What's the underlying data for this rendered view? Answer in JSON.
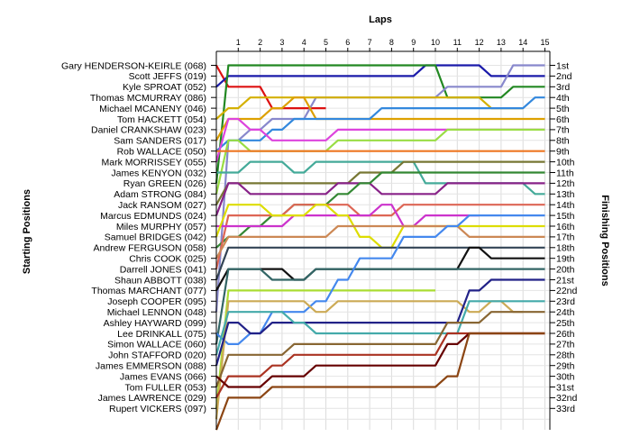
{
  "chart_data": {
    "type": "line",
    "xlabel": "Laps",
    "ylabel_left": "Starting Positions",
    "ylabel_right": "Finishing Positions",
    "x_ticks": [
      "1",
      "2",
      "3",
      "4",
      "5",
      "6",
      "7",
      "8",
      "9",
      "10",
      "11",
      "12",
      "13",
      "14",
      "15"
    ],
    "finishing_labels": [
      "1st",
      "2nd",
      "3rd",
      "4th",
      "5th",
      "6th",
      "7th",
      "8th",
      "9th",
      "10th",
      "11th",
      "12th",
      "13th",
      "14th",
      "15th",
      "16th",
      "17th",
      "18th",
      "19th",
      "20th",
      "21st",
      "22nd",
      "23rd",
      "24th",
      "25th",
      "26th",
      "27th",
      "28th",
      "29th",
      "30th",
      "31st",
      "32nd",
      "33rd"
    ],
    "starting_labels": [
      "Gary HENDERSON-KEIRLE (068)",
      "Scott JEFFS (019)",
      "Kyle SPROAT (052)",
      "Thomas MCMURRAY (086)",
      "Michael MCANENY (046)",
      "Tom HACKETT (054)",
      "Daniel CRANKSHAW (023)",
      "Sam SANDERS (017)",
      "Rob WALLACE (050)",
      "Mark MORRISSEY (055)",
      "James KENYON (032)",
      "Ryan GREEN (026)",
      "Adam STRONG (084)",
      "Jack RANSOM (027)",
      "Marcus EDMUNDS (024)",
      "Miles MURPHY (057)",
      "Samuel BRIDGES (042)",
      "Andrew FERGUSON (058)",
      "Chris COOK (025)",
      "Darrell JONES (041)",
      "Shaun ABBOTT (038)",
      "Thomas MARCHANT (077)",
      "Joseph COOPER (095)",
      "Michael LENNON (048)",
      "Ashley HAYWARD (099)",
      "Lee DRINKALL (075)",
      "Simon WALLACE (060)",
      "John STAFFORD (020)",
      "James EMMERSON (088)",
      "James EVANS (066)",
      "Tom FULLER (053)",
      "James LAWRENCE (029)",
      "Rupert VICKERS (097)"
    ],
    "series": [
      {
        "color": "#dd1111",
        "values": [
          1,
          3,
          3,
          5,
          5,
          5
        ]
      },
      {
        "color": "#1a1aaa",
        "values": [
          3,
          2,
          2,
          2,
          2,
          2,
          2,
          2,
          2,
          2,
          1,
          1,
          1,
          2,
          2,
          2
        ]
      },
      {
        "color": "#228822",
        "values": [
          12,
          1,
          1,
          1,
          1,
          1,
          1,
          1,
          1,
          1,
          1,
          4,
          4,
          4,
          3,
          3
        ]
      },
      {
        "color": "#8888cc",
        "values": [
          24,
          8,
          7,
          6,
          6,
          4,
          4,
          4,
          4,
          4,
          4,
          3,
          3,
          3,
          1,
          1
        ]
      },
      {
        "color": "#d4b000",
        "values": [
          6,
          5,
          4,
          4,
          4,
          4,
          4,
          4,
          4,
          4,
          4,
          4,
          4,
          5,
          5
        ]
      },
      {
        "color": "#dda000",
        "values": [
          8,
          6,
          6,
          5,
          4,
          6,
          6,
          6,
          6,
          6,
          6,
          6,
          6,
          6,
          6,
          6
        ]
      },
      {
        "color": "#3388dd",
        "values": [
          9,
          8,
          8,
          7,
          6,
          6,
          6,
          6,
          5,
          5,
          5,
          5,
          5,
          5,
          5,
          4
        ]
      },
      {
        "color": "#dd44dd",
        "values": [
          10,
          6,
          7,
          8,
          8,
          8,
          7,
          7,
          7,
          7,
          7,
          7,
          7,
          7,
          7,
          7
        ]
      },
      {
        "color": "#99dd44",
        "values": [
          13,
          8,
          9,
          9,
          9,
          9,
          8,
          8,
          8,
          8,
          8,
          7,
          7,
          7,
          7,
          7
        ]
      },
      {
        "color": "#ee7722",
        "values": [
          9,
          9,
          9,
          9,
          9,
          9,
          9,
          9,
          9,
          9,
          9,
          9,
          9,
          9,
          9,
          9
        ]
      },
      {
        "color": "#44aa99",
        "values": [
          11,
          11,
          10,
          10,
          11,
          10,
          10,
          10,
          10,
          10,
          12,
          12,
          12,
          12,
          12,
          13
        ]
      },
      {
        "color": "#777733",
        "values": [
          14,
          12,
          12,
          12,
          12,
          12,
          12,
          11,
          11,
          10,
          10,
          10,
          10,
          10,
          10,
          10
        ]
      },
      {
        "color": "#882288",
        "values": [
          15,
          12,
          13,
          13,
          13,
          13,
          12,
          12,
          13,
          13,
          13,
          12,
          12,
          12,
          12,
          12
        ]
      },
      {
        "color": "#338833",
        "values": [
          18,
          17,
          16,
          15,
          14,
          14,
          13,
          12,
          11,
          11,
          11,
          11,
          11,
          11,
          11,
          11
        ]
      },
      {
        "color": "#dd6655",
        "values": [
          20,
          15,
          15,
          15,
          14,
          14,
          14,
          15,
          15,
          14,
          14,
          14,
          14,
          14,
          14,
          14
        ]
      },
      {
        "color": "#cc33cc",
        "values": [
          16,
          16,
          16,
          16,
          15,
          15,
          15,
          15,
          14,
          16,
          15,
          15,
          15
        ]
      },
      {
        "color": "#dddd00",
        "values": [
          17,
          14,
          14,
          15,
          15,
          14,
          15,
          17,
          18,
          16,
          16,
          16,
          16,
          16,
          16,
          16
        ]
      },
      {
        "color": "#cc8855",
        "values": [
          19,
          17,
          17,
          17,
          17,
          17,
          16,
          16,
          16,
          16,
          16,
          16,
          17,
          17,
          17,
          17
        ]
      },
      {
        "color": "#334455",
        "values": [
          21,
          18,
          18,
          18,
          18,
          18,
          18,
          18,
          18,
          18,
          18,
          18,
          18,
          18,
          18,
          18
        ]
      },
      {
        "color": "#111111",
        "values": [
          22,
          20,
          20,
          20,
          21,
          20,
          20,
          20,
          20,
          20,
          20,
          20,
          18,
          19,
          19,
          19
        ]
      },
      {
        "color": "#336666",
        "values": [
          27,
          20,
          20,
          21,
          21,
          20,
          20,
          20,
          20,
          20,
          20,
          20,
          20,
          20,
          20,
          20
        ]
      },
      {
        "color": "#aadd33",
        "values": [
          33,
          22,
          22,
          22,
          22,
          22,
          22,
          22,
          22,
          22,
          22
        ]
      },
      {
        "color": "#4488ee",
        "values": [
          26,
          27,
          26,
          24,
          24,
          23,
          21,
          19,
          19,
          17,
          17,
          16,
          15,
          15,
          15,
          15
        ]
      },
      {
        "color": "#ccaa55",
        "values": [
          34,
          23,
          23,
          23,
          23,
          24,
          23,
          23,
          23,
          23,
          23,
          23,
          24,
          23,
          24
        ]
      },
      {
        "color": "#222288",
        "values": [
          29,
          25,
          26,
          25,
          25,
          25,
          25,
          25,
          25,
          25,
          25,
          25,
          22,
          21,
          21,
          21
        ]
      },
      {
        "color": "#44aaaa",
        "values": [
          28,
          24,
          24,
          24,
          25,
          26,
          26,
          26,
          26,
          26,
          26,
          26,
          23,
          23,
          23,
          23
        ]
      },
      {
        "color": "#886633",
        "values": [
          31,
          28,
          28,
          28,
          27,
          27,
          27,
          27,
          27,
          27,
          27,
          25,
          25,
          24,
          24,
          24
        ]
      },
      {
        "color": "#aa3322",
        "values": [
          32,
          30,
          30,
          29,
          28,
          28,
          28,
          28,
          28,
          28,
          28,
          26,
          26,
          26,
          26,
          26
        ]
      },
      {
        "color": "#660000",
        "values": [
          30,
          31,
          31,
          30,
          30,
          29,
          29,
          29,
          29,
          29,
          29,
          27,
          26,
          26,
          26,
          26
        ]
      },
      {
        "color": "#8b4513",
        "values": [
          35,
          32,
          32,
          31,
          31,
          31,
          31,
          31,
          31,
          31,
          31,
          30,
          26,
          26,
          26,
          26
        ]
      }
    ]
  }
}
